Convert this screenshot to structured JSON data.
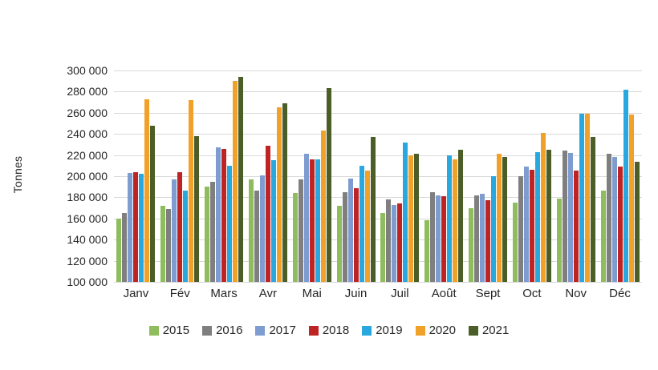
{
  "y_axis_title": "Tonnes",
  "chart_data": {
    "type": "bar",
    "title": "",
    "xlabel": "",
    "ylabel": "Tonnes",
    "categories": [
      "Janv",
      "Fév",
      "Mars",
      "Avr",
      "Mai",
      "Juin",
      "Juil",
      "Août",
      "Sept",
      "Oct",
      "Nov",
      "Déc"
    ],
    "ylim": [
      100000,
      300000
    ],
    "ytick_step": 20000,
    "ytick_labels": [
      "100 000",
      "120 000",
      "140 000",
      "160 000",
      "180 000",
      "200 000",
      "220 000",
      "240 000",
      "260 000",
      "280 000",
      "300 000"
    ],
    "grid": true,
    "legend_position": "bottom",
    "background_color": "#ffffff",
    "gridline_color": "#d9d9d9",
    "series": [
      {
        "name": "2015",
        "color": "#8fbc5c",
        "values": [
          160000,
          172000,
          190000,
          197000,
          184000,
          172000,
          165000,
          158000,
          170000,
          175000,
          179000,
          186000
        ]
      },
      {
        "name": "2016",
        "color": "#7f7f7f",
        "values": [
          165000,
          169000,
          195000,
          186000,
          197000,
          185000,
          178000,
          185000,
          182000,
          200000,
          224000,
          221000
        ]
      },
      {
        "name": "2017",
        "color": "#7e9cd0",
        "values": [
          203000,
          197000,
          227000,
          201000,
          221000,
          198000,
          173000,
          182000,
          183000,
          209000,
          222000,
          218000
        ]
      },
      {
        "name": "2018",
        "color": "#be2424",
        "values": [
          204000,
          204000,
          226000,
          229000,
          216000,
          189000,
          174000,
          181000,
          177000,
          206000,
          205000,
          209000
        ]
      },
      {
        "name": "2019",
        "color": "#29a8df",
        "values": [
          202000,
          186000,
          210000,
          215000,
          216000,
          210000,
          232000,
          220000,
          200000,
          223000,
          259000,
          282000
        ]
      },
      {
        "name": "2020",
        "color": "#f2a128",
        "values": [
          273000,
          272000,
          290000,
          265000,
          243000,
          205000,
          220000,
          216000,
          221000,
          241000,
          259000,
          258000
        ]
      },
      {
        "name": "2021",
        "color": "#4c5e27",
        "values": [
          248000,
          238000,
          294000,
          269000,
          283000,
          237000,
          221000,
          225000,
          218000,
          225000,
          237000,
          214000
        ]
      }
    ]
  }
}
